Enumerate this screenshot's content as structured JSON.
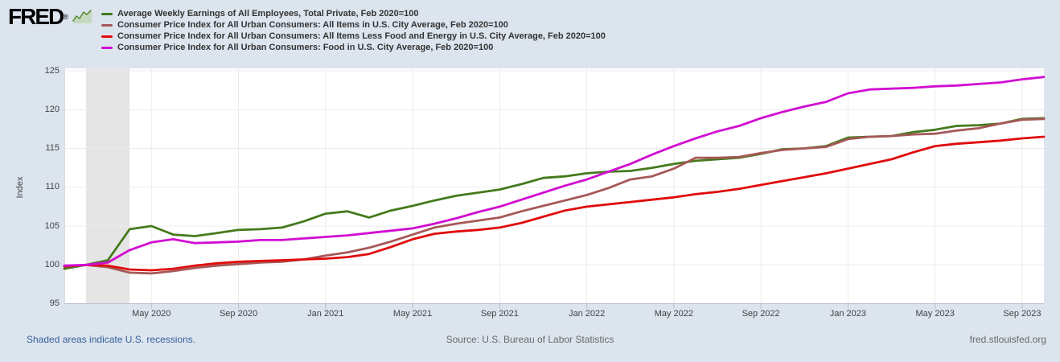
{
  "page": {
    "background": "#dce4ee"
  },
  "header": {
    "logo_text": "FRED",
    "registered_mark": "®"
  },
  "footer": {
    "recessions_note": "Shaded areas indicate U.S. recessions.",
    "source": "Source: U.S. Bureau of Labor Statistics",
    "site": "fred.stlouisfed.org"
  },
  "chart_data": {
    "type": "line",
    "title": "",
    "ylabel": "Index",
    "xlabel": "",
    "ylim": [
      95,
      125
    ],
    "yticks": [
      95,
      100,
      105,
      110,
      115,
      120,
      125
    ],
    "grid": true,
    "legend_position": "top-left",
    "x_unit": "month",
    "x_range": [
      "2020-01",
      "2023-10"
    ],
    "n_points": 46,
    "xticks": [
      {
        "label": "May 2020",
        "month_index": 4
      },
      {
        "label": "Sep 2020",
        "month_index": 8
      },
      {
        "label": "Jan 2021",
        "month_index": 12
      },
      {
        "label": "May 2021",
        "month_index": 16
      },
      {
        "label": "Sep 2021",
        "month_index": 20
      },
      {
        "label": "Jan 2022",
        "month_index": 24
      },
      {
        "label": "May 2022",
        "month_index": 28
      },
      {
        "label": "Sep 2022",
        "month_index": 32
      },
      {
        "label": "Jan 2023",
        "month_index": 36
      },
      {
        "label": "May 2023",
        "month_index": 40
      },
      {
        "label": "Sep 2023",
        "month_index": 44
      }
    ],
    "recession_band": {
      "meaning": "U.S. recession",
      "from_month_index": 1,
      "to_month_index": 3,
      "color": "#e5e5e5"
    },
    "colors": {
      "plot_background": "#ffffff",
      "gridline": "#ececec",
      "axis_line": "#b6c0cf",
      "tick_label": "#434343",
      "legend_text": "#333333",
      "footer_link": "#36619b",
      "footer_text": "#6a6a6a"
    },
    "series": [
      {
        "name": "Average Weekly Earnings of All Employees, Total Private, Feb 2020=100",
        "color": "#457a1d",
        "values": [
          99.5,
          100.0,
          100.6,
          104.6,
          105.0,
          103.9,
          103.7,
          104.1,
          104.5,
          104.6,
          104.8,
          105.6,
          106.6,
          106.9,
          106.1,
          107.0,
          107.6,
          108.3,
          108.9,
          109.3,
          109.7,
          110.4,
          111.2,
          111.4,
          111.8,
          112.0,
          112.1,
          112.5,
          113.0,
          113.4,
          113.6,
          113.8,
          114.3,
          114.9,
          115.0,
          115.3,
          116.4,
          116.5,
          116.6,
          117.1,
          117.4,
          117.9,
          118.0,
          118.2,
          118.8,
          118.9
        ]
      },
      {
        "name": "Consumer Price Index for All Urban Consumers: All Items in U.S. City Average, Feb 2020=100",
        "color": "#a65858",
        "values": [
          99.8,
          100.0,
          99.7,
          99.0,
          98.9,
          99.2,
          99.6,
          99.9,
          100.1,
          100.3,
          100.4,
          100.7,
          101.2,
          101.6,
          102.2,
          103.0,
          103.9,
          104.8,
          105.3,
          105.7,
          106.1,
          106.9,
          107.6,
          108.3,
          109.0,
          109.9,
          111.0,
          111.4,
          112.4,
          113.8,
          113.8,
          113.9,
          114.4,
          114.8,
          115.0,
          115.2,
          116.2,
          116.5,
          116.6,
          116.8,
          116.9,
          117.3,
          117.6,
          118.2,
          118.7,
          118.8
        ]
      },
      {
        "name": "Consumer Price Index for All Urban Consumers: All Items Less Food and Energy in U.S. City Average, Feb 2020=100",
        "color": "#e00b0b",
        "values": [
          99.8,
          100.0,
          99.9,
          99.4,
          99.3,
          99.5,
          99.9,
          100.2,
          100.4,
          100.5,
          100.6,
          100.7,
          100.8,
          101.0,
          101.4,
          102.3,
          103.3,
          104.0,
          104.3,
          104.5,
          104.8,
          105.4,
          106.2,
          107.0,
          107.5,
          107.8,
          108.1,
          108.4,
          108.7,
          109.1,
          109.4,
          109.8,
          110.3,
          110.8,
          111.3,
          111.8,
          112.4,
          113.0,
          113.6,
          114.5,
          115.3,
          115.6,
          115.8,
          116.0,
          116.3,
          116.5
        ]
      },
      {
        "name": "Consumer Price Index for All Urban Consumers: Food in U.S. City Average, Feb 2020=100",
        "color": "#d10ed1",
        "values": [
          99.9,
          100.0,
          100.3,
          101.9,
          102.9,
          103.3,
          102.8,
          102.9,
          103.0,
          103.2,
          103.2,
          103.4,
          103.6,
          103.8,
          104.1,
          104.4,
          104.7,
          105.3,
          106.0,
          106.8,
          107.5,
          108.4,
          109.3,
          110.2,
          111.0,
          112.0,
          113.0,
          114.2,
          115.3,
          116.3,
          117.2,
          117.9,
          118.9,
          119.7,
          120.4,
          121.0,
          122.1,
          122.6,
          122.7,
          122.8,
          123.0,
          123.1,
          123.3,
          123.5,
          123.9,
          124.2
        ]
      }
    ]
  }
}
